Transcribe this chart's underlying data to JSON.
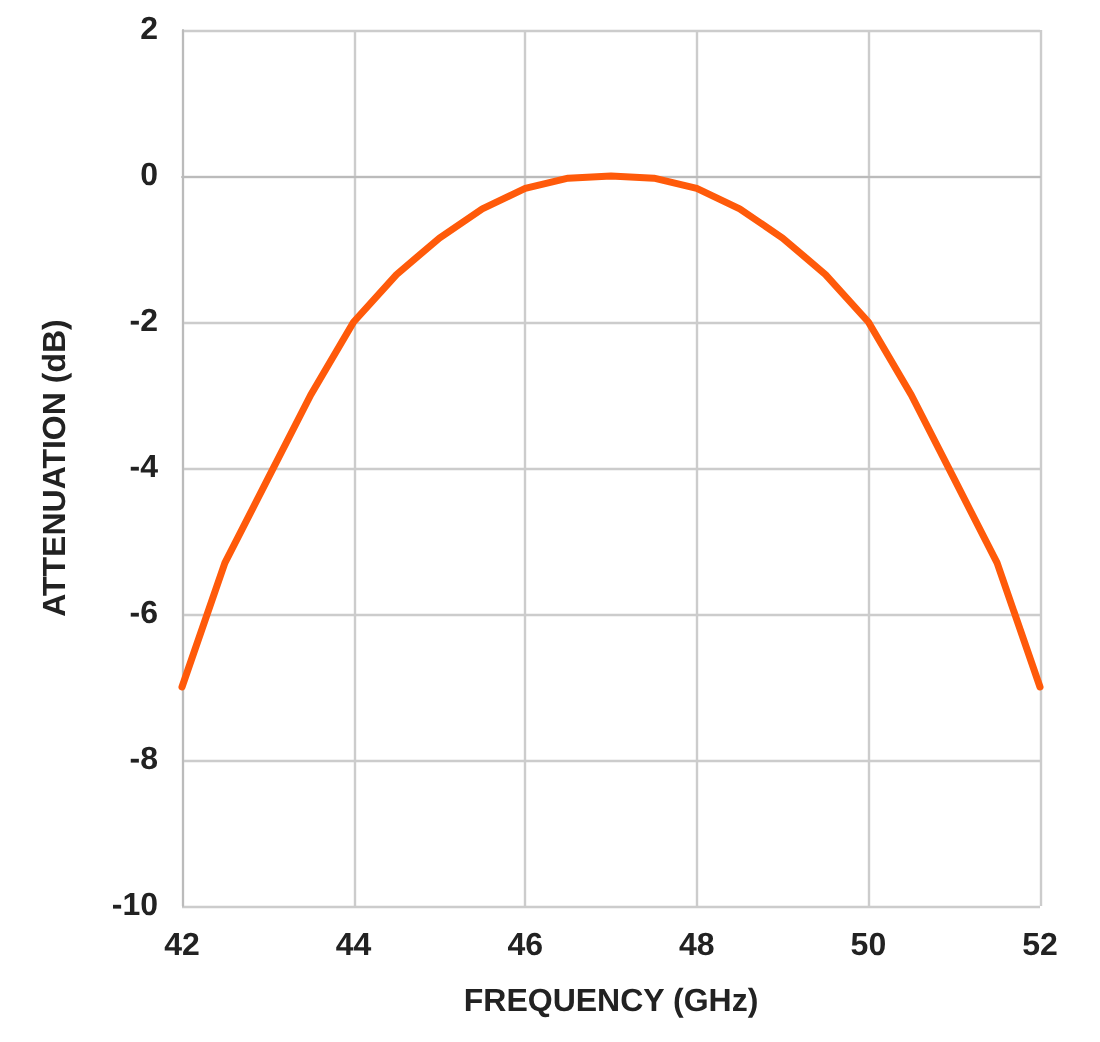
{
  "chart_data": {
    "type": "line",
    "xlabel": "FREQUENCY (GHz)",
    "ylabel": "ATTENUATION (dB)",
    "x": [
      42,
      42.5,
      43,
      43.5,
      44,
      44.5,
      45,
      45.5,
      46,
      46.5,
      47,
      47.5,
      48,
      48.5,
      49,
      49.5,
      50,
      50.5,
      51,
      51.5,
      52
    ],
    "series": [
      {
        "color": "#ff5a0a",
        "values": [
          -7,
          -5.3,
          -4.15,
          -3.0,
          -2.0,
          -1.35,
          -0.85,
          -0.45,
          -0.17,
          -0.03,
          0,
          -0.03,
          -0.17,
          -0.45,
          -0.85,
          -1.35,
          -2.0,
          -3.0,
          -4.15,
          -5.3,
          -7
        ]
      }
    ],
    "xlim": [
      42,
      52
    ],
    "xticks": [
      42,
      44,
      46,
      48,
      50,
      52
    ],
    "ylim": [
      -10,
      2
    ],
    "yticks": [
      -10,
      -8,
      -6,
      -4,
      -2,
      0,
      2
    ],
    "grid": true,
    "marker": "none",
    "line_style": "solid"
  }
}
